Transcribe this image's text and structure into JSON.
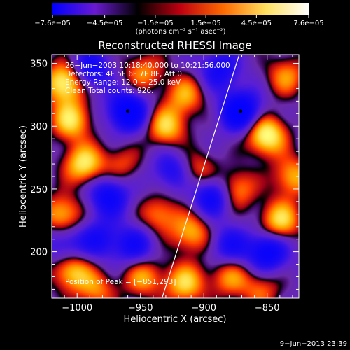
{
  "chart_data": {
    "type": "heatmap",
    "title": "Reconstructed RHESSI Image",
    "xlabel": "Heliocentric X (arcsec)",
    "ylabel": "Heliocentric Y (arcsec)",
    "xlim": [
      -1020,
      -825
    ],
    "ylim": [
      163,
      357
    ],
    "x_ticks": [
      -1000,
      -950,
      -900,
      -850
    ],
    "y_ticks": [
      200,
      250,
      300,
      350
    ],
    "x_tick_labels": [
      "−1000",
      "−950",
      "−900",
      "−850"
    ],
    "y_tick_labels": [
      "200",
      "250",
      "300",
      "350"
    ],
    "colorbar": {
      "range": [
        -7.6e-05,
        7.6e-05
      ],
      "tick_values": [
        -7.6e-05,
        -4.5e-05,
        -1.5e-05,
        1.5e-05,
        4.5e-05,
        7.6e-05
      ],
      "tick_labels": [
        "−7.6e−05",
        "−4.5e−05",
        "−1.5e−05",
        "1.5e−05",
        "4.5e−05",
        "7.6e−05"
      ],
      "unit_label": "(photons cm⁻² s⁻¹ asec⁻²)",
      "stops": [
        "#0000ff",
        "#6a1ad0",
        "#000000",
        "#c00010",
        "#ff6a00",
        "#ffe060",
        "#ffffff"
      ]
    },
    "annotations": [
      "26−Jun−2003 10:18:40.000 to 10:21:56.000",
      "Detectors: 4F 5F 6F 7F 8F, Att 0",
      "Energy Range: 12.0 − 25.0 keV",
      "Clean     Total counts: 926."
    ],
    "peak_label": "Position of Peak = [−851,293]",
    "limb_line": [
      [
        -933,
        163
      ],
      [
        -872,
        357
      ]
    ],
    "markers": [
      [
        -960,
        312
      ],
      [
        -871,
        312
      ]
    ],
    "blobs": [
      {
        "x": -1010,
        "y": 335,
        "v": 1.0
      },
      {
        "x": -1005,
        "y": 305,
        "v": 0.8
      },
      {
        "x": -995,
        "y": 270,
        "v": 0.85
      },
      {
        "x": -1012,
        "y": 230,
        "v": 0.7
      },
      {
        "x": -1005,
        "y": 185,
        "v": 0.75
      },
      {
        "x": -985,
        "y": 170,
        "v": 0.5
      },
      {
        "x": -948,
        "y": 343,
        "v": 0.55
      },
      {
        "x": -930,
        "y": 300,
        "v": 0.75
      },
      {
        "x": -915,
        "y": 325,
        "v": 0.6
      },
      {
        "x": -935,
        "y": 230,
        "v": 0.55
      },
      {
        "x": -910,
        "y": 215,
        "v": 0.65
      },
      {
        "x": -948,
        "y": 180,
        "v": 0.6
      },
      {
        "x": -915,
        "y": 175,
        "v": 0.75
      },
      {
        "x": -880,
        "y": 180,
        "v": 0.55
      },
      {
        "x": -855,
        "y": 170,
        "v": 0.45
      },
      {
        "x": -905,
        "y": 265,
        "v": 0.5
      },
      {
        "x": -875,
        "y": 250,
        "v": 0.65
      },
      {
        "x": -851,
        "y": 293,
        "v": 1.0
      },
      {
        "x": -835,
        "y": 340,
        "v": 0.55
      },
      {
        "x": -840,
        "y": 225,
        "v": 0.8
      },
      {
        "x": -830,
        "y": 260,
        "v": 0.65
      },
      {
        "x": -965,
        "y": 270,
        "v": 0.4
      },
      {
        "x": -960,
        "y": 312,
        "v": -1.0
      },
      {
        "x": -871,
        "y": 312,
        "v": -1.0
      },
      {
        "x": -990,
        "y": 345,
        "v": -0.7
      },
      {
        "x": -975,
        "y": 245,
        "v": -0.75
      },
      {
        "x": -955,
        "y": 205,
        "v": -0.6
      },
      {
        "x": -893,
        "y": 245,
        "v": -0.8
      },
      {
        "x": -850,
        "y": 200,
        "v": -0.85
      },
      {
        "x": -888,
        "y": 345,
        "v": -0.6
      },
      {
        "x": -1010,
        "y": 205,
        "v": -0.5
      },
      {
        "x": -880,
        "y": 205,
        "v": -0.55
      },
      {
        "x": -983,
        "y": 210,
        "v": -0.55
      },
      {
        "x": -925,
        "y": 265,
        "v": -0.55
      }
    ]
  },
  "timestamp": "9−Jun−2013 23:39"
}
